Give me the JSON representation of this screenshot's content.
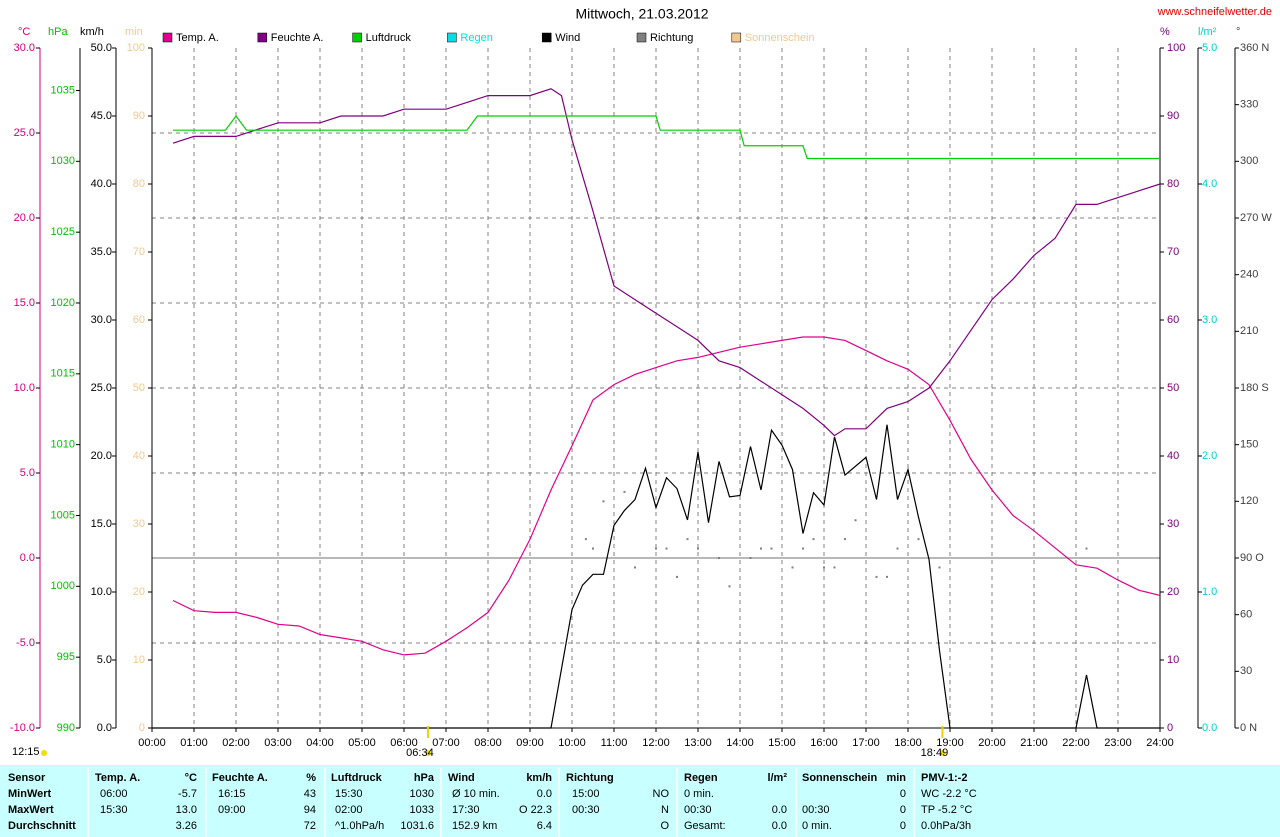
{
  "chart_data": {
    "type": "line",
    "title": "Mittwoch, 21.03.2012",
    "website": "www.schneifelwetter.de",
    "update_time": "12:15",
    "grid": true,
    "grid_axis": "°C",
    "xlim": [
      0,
      24
    ],
    "xticks": [
      {
        "value": 0,
        "label": "00:00"
      },
      {
        "value": 1,
        "label": "01:00"
      },
      {
        "value": 2,
        "label": "02:00"
      },
      {
        "value": 3,
        "label": "03:00"
      },
      {
        "value": 4,
        "label": "04:00"
      },
      {
        "value": 5,
        "label": "05:00"
      },
      {
        "value": 6,
        "label": "06:00"
      },
      {
        "value": 7,
        "label": "07:00"
      },
      {
        "value": 8,
        "label": "08:00"
      },
      {
        "value": 9,
        "label": "09:00"
      },
      {
        "value": 10,
        "label": "10:00"
      },
      {
        "value": 11,
        "label": "11:00"
      },
      {
        "value": 12,
        "label": "12:00"
      },
      {
        "value": 13,
        "label": "13:00"
      },
      {
        "value": 14,
        "label": "14:00"
      },
      {
        "value": 15,
        "label": "15:00"
      },
      {
        "value": 16,
        "label": "16:00"
      },
      {
        "value": 17,
        "label": "17:00"
      },
      {
        "value": 18,
        "label": "18:00"
      },
      {
        "value": 19,
        "label": "19:00"
      },
      {
        "value": 20,
        "label": "20:00"
      },
      {
        "value": 21,
        "label": "21:00"
      },
      {
        "value": 22,
        "label": "22:00"
      },
      {
        "value": 23,
        "label": "23:00"
      },
      {
        "value": 24,
        "label": "24:00"
      }
    ],
    "axes": [
      {
        "unit": "°C",
        "color": "#d0007a",
        "lim": [
          -10,
          30
        ],
        "ticks": [
          {
            "value": -10,
            "label": "-10.0"
          },
          {
            "value": -5,
            "label": "-5.0"
          },
          {
            "value": 0,
            "label": "0.0"
          },
          {
            "value": 5,
            "label": "5.0"
          },
          {
            "value": 10,
            "label": "10.0"
          },
          {
            "value": 15,
            "label": "15.0"
          },
          {
            "value": 20,
            "label": "20.0"
          },
          {
            "value": 25,
            "label": "25.0"
          },
          {
            "value": 30,
            "label": "30.0"
          }
        ]
      },
      {
        "unit": "hPa",
        "color": "#00c000",
        "lim": [
          990,
          1038
        ],
        "ticks": [
          990,
          995,
          1000,
          1005,
          1010,
          1015,
          1020,
          1025,
          1030,
          1035
        ]
      },
      {
        "unit": "km/h",
        "color": "#000000",
        "lim": [
          0,
          50
        ],
        "ticks": [
          {
            "value": 0,
            "label": "0.0"
          },
          {
            "value": 5,
            "label": "5.0"
          },
          {
            "value": 10,
            "label": "10.0"
          },
          {
            "value": 15,
            "label": "15.0"
          },
          {
            "value": 20,
            "label": "20.0"
          },
          {
            "value": 25,
            "label": "25.0"
          },
          {
            "value": 30,
            "label": "30.0"
          },
          {
            "value": 35,
            "label": "35.0"
          },
          {
            "value": 40,
            "label": "40.0"
          },
          {
            "value": 45,
            "label": "45.0"
          },
          {
            "value": 50,
            "label": "50.0"
          }
        ]
      },
      {
        "unit": "min",
        "color": "#f0c890",
        "lim": [
          0,
          100
        ],
        "ticks": [
          0,
          10,
          20,
          30,
          40,
          50,
          60,
          70,
          80,
          90,
          100
        ]
      },
      {
        "unit": "%",
        "color": "#800080",
        "lim": [
          0,
          100
        ],
        "ticks": [
          0,
          10,
          20,
          30,
          40,
          50,
          60,
          70,
          80,
          90,
          100
        ]
      },
      {
        "unit": "l/m²",
        "color": "#00d0d0",
        "lim": [
          0,
          5
        ],
        "ticks": [
          {
            "value": 0,
            "label": "0.0"
          },
          {
            "value": 1,
            "label": "1.0"
          },
          {
            "value": 2,
            "label": "2.0"
          },
          {
            "value": 3,
            "label": "3.0"
          },
          {
            "value": 4,
            "label": "4.0"
          },
          {
            "value": 5,
            "label": "5.0"
          }
        ]
      },
      {
        "unit": "°",
        "color": "#404040",
        "lim": [
          0,
          360
        ],
        "ticks": [
          {
            "value": 0,
            "label": "0 N"
          },
          30,
          60,
          {
            "value": 90,
            "label": "90 O"
          },
          120,
          150,
          {
            "value": 180,
            "label": "180 S"
          },
          210,
          240,
          {
            "value": 270,
            "label": "270 W"
          },
          300,
          330,
          {
            "value": 360,
            "label": "360 N"
          }
        ]
      }
    ],
    "series": [
      {
        "name": "Temp. A.",
        "color": "#e0008c",
        "axis": "°C",
        "kind": "line",
        "x": [
          0.5,
          1,
          1.5,
          2,
          2.5,
          3,
          3.5,
          4,
          4.5,
          5,
          5.5,
          6,
          6.5,
          7,
          7.5,
          8,
          8.5,
          9,
          9.5,
          10,
          10.5,
          11,
          11.5,
          12,
          12.5,
          13,
          13.5,
          14,
          14.5,
          15,
          15.5,
          16,
          16.5,
          17,
          17.5,
          18,
          18.5,
          19,
          19.5,
          20,
          20.5,
          21,
          21.5,
          22,
          22.5,
          23,
          23.5,
          24
        ],
        "values": [
          -2.5,
          -3.1,
          -3.2,
          -3.2,
          -3.5,
          -3.9,
          -4.0,
          -4.5,
          -4.7,
          -4.9,
          -5.4,
          -5.7,
          -5.6,
          -4.9,
          -4.1,
          -3.2,
          -1.3,
          1.1,
          4.0,
          6.6,
          9.3,
          10.2,
          10.8,
          11.2,
          11.6,
          11.8,
          12.1,
          12.4,
          12.6,
          12.8,
          13.0,
          13.0,
          12.8,
          12.2,
          11.6,
          11.1,
          10.2,
          8.1,
          5.8,
          4.0,
          2.5,
          1.6,
          0.6,
          -0.4,
          -0.6,
          -1.3,
          -1.9,
          -2.2
        ]
      },
      {
        "name": "Feuchte A.",
        "color": "#800080",
        "axis": "%",
        "kind": "line",
        "x": [
          0.5,
          1,
          2,
          2.5,
          3,
          4,
          4.5,
          5.5,
          6,
          7,
          7.5,
          8,
          9,
          9.5,
          9.75,
          10,
          10.5,
          11,
          11.5,
          12,
          12.5,
          13,
          13.5,
          14,
          14.5,
          15,
          15.5,
          16,
          16.25,
          16.5,
          17,
          17.5,
          18,
          18.5,
          19,
          19.5,
          20,
          20.5,
          21,
          21.5,
          22,
          22.5,
          23,
          23.5,
          24
        ],
        "values": [
          86,
          87,
          87,
          88,
          89,
          89,
          90,
          90,
          91,
          91,
          92,
          93,
          93,
          94,
          93,
          86.5,
          76,
          65,
          63,
          61,
          59,
          57,
          54,
          53,
          51,
          49,
          47,
          44.5,
          43,
          44,
          44,
          47,
          48,
          50,
          54,
          58.5,
          63,
          66,
          69.5,
          72,
          77,
          77,
          78,
          79,
          80
        ]
      },
      {
        "name": "Luftdruck",
        "color": "#00d000",
        "axis": "hPa",
        "kind": "line",
        "x": [
          0.5,
          1.75,
          2,
          2.25,
          2.5,
          7.5,
          7.75,
          12,
          12.1,
          14,
          14.1,
          15.5,
          15.6,
          24
        ],
        "values": [
          1032.2,
          1032.2,
          1033.2,
          1032.2,
          1032.2,
          1032.2,
          1033.2,
          1033.2,
          1032.2,
          1032.2,
          1031.1,
          1031.1,
          1030.2,
          1030.2
        ]
      },
      {
        "name": "Regen",
        "color": "#00e0e0",
        "axis": "l/m²"
      },
      {
        "name": "Wind",
        "color": "#000000",
        "axis": "km/h",
        "kind": "line",
        "x": [
          0,
          9.5,
          10,
          10.25,
          10.5,
          10.75,
          11,
          11.25,
          11.5,
          11.75,
          12,
          12.25,
          12.5,
          12.75,
          13,
          13.25,
          13.5,
          13.75,
          14,
          14.25,
          14.5,
          14.75,
          15,
          15.25,
          15.5,
          15.75,
          16,
          16.25,
          16.5,
          17,
          17.25,
          17.5,
          17.75,
          18,
          18.25,
          18.5,
          18.75,
          19,
          22,
          22.25,
          22.5,
          24
        ],
        "values": [
          0,
          0,
          8.7,
          10.5,
          11.3,
          11.3,
          14.9,
          16,
          16.8,
          19.1,
          16.2,
          18.4,
          17.6,
          15.3,
          20.3,
          15.1,
          19.6,
          17,
          17.1,
          20.7,
          17.5,
          21.9,
          20.8,
          19,
          14.3,
          17.3,
          16.4,
          21.4,
          18.6,
          19.9,
          16.8,
          22.3,
          16.8,
          19,
          15.5,
          12.4,
          5.7,
          0,
          0,
          3.9,
          0,
          0
        ]
      },
      {
        "name": "Richtung",
        "color": "#808080",
        "axis": "°",
        "kind": "points",
        "x": [
          10.33,
          10.5,
          10.75,
          11.25,
          11.5,
          12,
          12.25,
          12.5,
          12.75,
          13,
          13.5,
          13.75,
          14.25,
          14.5,
          14.75,
          15.25,
          15.5,
          15.75,
          16,
          16.25,
          16.5,
          16.75,
          17.25,
          17.5,
          17.75,
          18.25,
          18.75,
          22.25
        ],
        "values": [
          100,
          95,
          120,
          125,
          85,
          95,
          95,
          80,
          100,
          95,
          90,
          75,
          90,
          95,
          95,
          85,
          95,
          100,
          85,
          85,
          100,
          110,
          80,
          80,
          95,
          100,
          85,
          95
        ]
      },
      {
        "name": "Sonnenschein",
        "color": "#f0c890",
        "axis": "min"
      }
    ],
    "annotations": [
      {
        "x": 6.57,
        "text": "06:34"
      },
      {
        "x": 18.82,
        "text": "18:49"
      }
    ]
  },
  "table": {
    "corner": "Sensor",
    "row_labels": [
      "MinWert",
      "MaxWert",
      "Durchschnitt"
    ],
    "columns": [
      {
        "title": "Temp. A.",
        "unit": "°C",
        "cells": [
          [
            "06:00",
            "-5.7"
          ],
          [
            "15:30",
            "13.0"
          ],
          [
            null,
            "3.26"
          ]
        ]
      },
      {
        "title": "Feuchte A.",
        "unit": "%",
        "cells": [
          [
            "16:15",
            "43"
          ],
          [
            "09:00",
            "94"
          ],
          [
            null,
            "72"
          ]
        ]
      },
      {
        "title": "Luftdruck",
        "unit": "hPa",
        "cells": [
          [
            "15:30",
            "1030"
          ],
          [
            "02:00",
            "1033"
          ],
          [
            "^1.0hPa/h",
            "1031.6"
          ]
        ]
      },
      {
        "title": "Wind",
        "unit": "km/h",
        "cells": [
          [
            "Ø 10 min.",
            "0.0"
          ],
          [
            "17:30",
            "O 22.3"
          ],
          [
            "152.9 km",
            "6.4"
          ]
        ]
      },
      {
        "title": "Richtung",
        "unit": null,
        "cells": [
          [
            "15:00",
            "NO"
          ],
          [
            "00:30",
            "N"
          ],
          [
            null,
            "O"
          ]
        ]
      },
      {
        "title": "Regen",
        "unit": "l/m²",
        "cells": [
          [
            "0 min.",
            null
          ],
          [
            "00:30",
            "0.0"
          ],
          [
            "Gesamt:",
            "0.0"
          ]
        ]
      },
      {
        "title": "Sonnenschein",
        "unit": "min",
        "cells": [
          [
            null,
            "0"
          ],
          [
            "00:30",
            "0"
          ],
          [
            "0 min.",
            "0"
          ]
        ]
      },
      {
        "title": "PMV-1:-2",
        "unit": null,
        "cells": [
          [
            "WC -2.2 °C",
            null
          ],
          [
            "TP -5.2 °C",
            null
          ],
          [
            "0.0hPa/3h",
            null
          ]
        ]
      }
    ]
  }
}
